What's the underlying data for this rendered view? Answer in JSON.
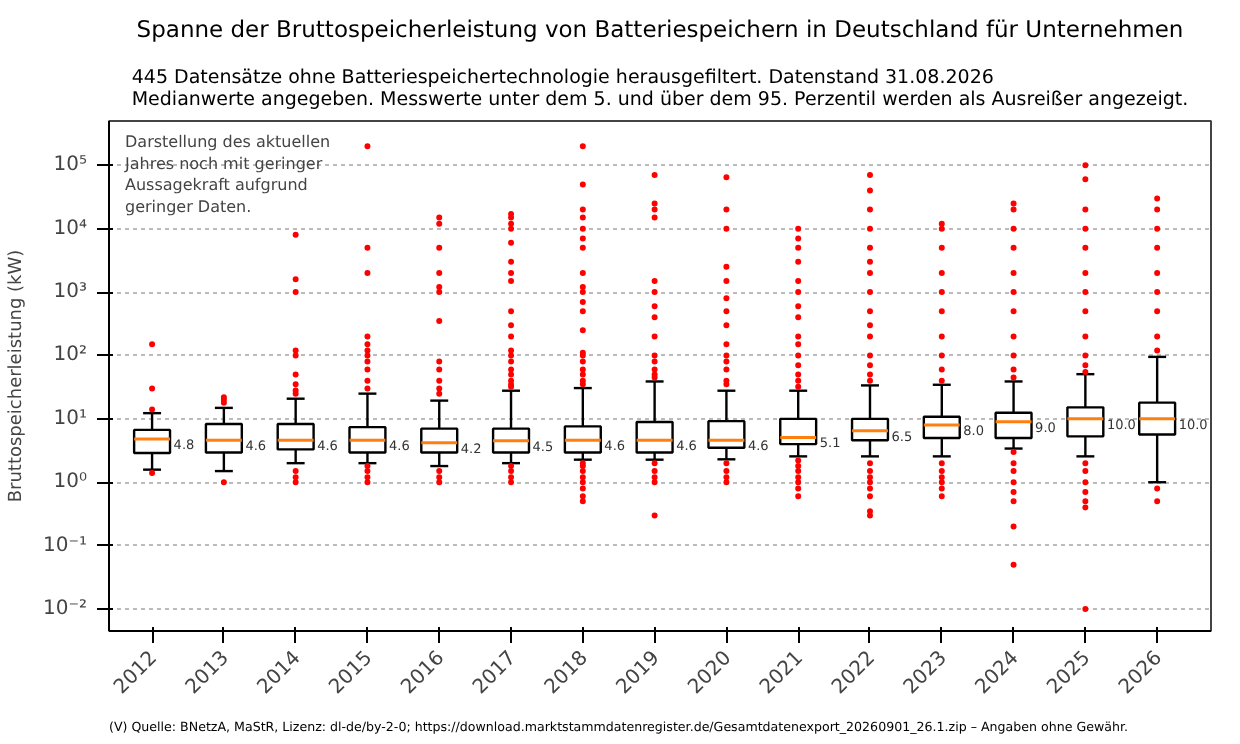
{
  "chart_data": {
    "type": "box",
    "title": "Spanne der Bruttospeicherleistung von Batteriespeichern in Deutschland für Unternehmen",
    "subtitle": "445 Datensätze ohne Batteriespeichertechnologie herausgefiltert. Datenstand 31.08.2026\nMedianwerte angegeben. Messwerte unter dem 5. und über dem 95. Perzentil werden als Ausreißer angezeigt.",
    "ylabel": "Bruttospeicherleistung (kW)",
    "categories": [
      "2012",
      "2013",
      "2014",
      "2015",
      "2016",
      "2017",
      "2018",
      "2019",
      "2020",
      "2021",
      "2022",
      "2023",
      "2024",
      "2025",
      "2026"
    ],
    "annotations": [
      "Darstellung des aktuellen\nJahres noch mit geringer\nAussagekraft aufgrund\ngeringer Daten.",
      "(V) Quelle: BNetzA, MaStR, Lizenz: dl-de/by-2-0; https://download.marktstammdatenregister.de/Gesamtdatenexport_20260901_26.1.zip – Angaben ohne Gewähr."
    ],
    "log": "y",
    "ylim": [
      0.0045,
      500000
    ],
    "yticks": [
      {
        "value": 0.01,
        "label": "10⁻²"
      },
      {
        "value": 0.1,
        "label": "10⁻¹"
      },
      {
        "value": 1,
        "label": "10⁰"
      },
      {
        "value": 10,
        "label": "10¹"
      },
      {
        "value": 100,
        "label": "10²"
      },
      {
        "value": 1000,
        "label": "10³"
      },
      {
        "value": 10000,
        "label": "10⁴"
      },
      {
        "value": 100000,
        "label": "10⁵"
      }
    ],
    "grid": "y",
    "value_labels": [
      "4.8",
      "4.6",
      "4.6",
      "4.6",
      "4.2",
      "4.5",
      "4.6",
      "4.6",
      "4.6",
      "5.1",
      "6.5",
      "8.0",
      "9.0",
      "10.0",
      "10.0"
    ],
    "series": [
      {
        "color": "#000000",
        "boxes": [
          {
            "low": 1.58,
            "q1": 2.9,
            "median": 4.8,
            "q3": 6.7,
            "high": 12.3,
            "outliers": [
              150,
              30,
              14,
              1.4
            ]
          },
          {
            "low": 1.5,
            "q1": 2.95,
            "median": 4.6,
            "q3": 8.3,
            "high": 14.9,
            "outliers": [
              22,
              20,
              18,
              1.0
            ]
          },
          {
            "low": 2.0,
            "q1": 3.3,
            "median": 4.6,
            "q3": 8.3,
            "high": 20.8,
            "outliers": [
              8000,
              1600,
              1000,
              120,
              100,
              50,
              35,
              28,
              25,
              1.5,
              1.2,
              1.0
            ]
          },
          {
            "low": 2.0,
            "q1": 2.95,
            "median": 4.6,
            "q3": 7.4,
            "high": 25,
            "outliers": [
              200000,
              5000,
              2000,
              200,
              150,
              120,
              100,
              80,
              60,
              40,
              30,
              1.8,
              1.5,
              1.2,
              1.0
            ]
          },
          {
            "low": 1.8,
            "q1": 2.95,
            "median": 4.2,
            "q3": 7.0,
            "high": 19.4,
            "outliers": [
              15000,
              12000,
              5000,
              2000,
              1200,
              1000,
              350,
              80,
              60,
              40,
              30,
              25,
              1.5,
              1.2,
              1.0
            ]
          },
          {
            "low": 2.0,
            "q1": 2.95,
            "median": 4.5,
            "q3": 7.0,
            "high": 27.8,
            "outliers": [
              17000,
              15000,
              12000,
              10000,
              6000,
              3000,
              2000,
              1500,
              500,
              300,
              200,
              120,
              100,
              80,
              60,
              50,
              40,
              35,
              32,
              1.8,
              1.5,
              1.2,
              1.0
            ]
          },
          {
            "low": 2.27,
            "q1": 2.95,
            "median": 4.6,
            "q3": 7.6,
            "high": 30.6,
            "outliers": [
              200000,
              50000,
              20000,
              15000,
              10000,
              7000,
              5000,
              2000,
              1200,
              1000,
              700,
              500,
              250,
              110,
              100,
              80,
              60,
              50,
              40,
              35,
              2.0,
              1.8,
              1.5,
              1.2,
              1.0,
              0.8,
              0.6,
              0.5
            ]
          },
          {
            "low": 2.27,
            "q1": 2.95,
            "median": 4.6,
            "q3": 8.9,
            "high": 38.9,
            "outliers": [
              70000,
              25000,
              20000,
              15000,
              1500,
              1000,
              600,
              400,
              200,
              100,
              80,
              60,
              50,
              45,
              2.0,
              1.5,
              1.2,
              1.0,
              0.3
            ]
          },
          {
            "low": 2.3,
            "q1": 3.5,
            "median": 4.6,
            "q3": 9.2,
            "high": 27.8,
            "outliers": [
              65000,
              20000,
              10000,
              2500,
              1500,
              800,
              500,
              300,
              150,
              100,
              80,
              60,
              40,
              35,
              2.0,
              1.5,
              1.2,
              1.0
            ]
          },
          {
            "low": 2.56,
            "q1": 4.0,
            "median": 5.1,
            "q3": 10,
            "high": 27.8,
            "outliers": [
              10000,
              7000,
              5000,
              3000,
              1500,
              1000,
              600,
              400,
              200,
              150,
              100,
              70,
              50,
              40,
              32,
              2.2,
              1.8,
              1.5,
              1.2,
              1.0,
              0.8,
              0.6
            ]
          },
          {
            "low": 2.56,
            "q1": 4.6,
            "median": 6.5,
            "q3": 10,
            "high": 33.7,
            "outliers": [
              70000,
              40000,
              20000,
              10000,
              5000,
              3000,
              2000,
              1000,
              500,
              300,
              200,
              100,
              70,
              50,
              40,
              2.0,
              1.5,
              1.2,
              1.0,
              0.8,
              0.6,
              0.35,
              0.3
            ]
          },
          {
            "low": 2.56,
            "q1": 5.0,
            "median": 8.0,
            "q3": 10.8,
            "high": 34.5,
            "outliers": [
              12000,
              10000,
              5000,
              2000,
              1000,
              500,
              200,
              100,
              60,
              40,
              2.0,
              1.5,
              1.2,
              1.0,
              0.8,
              0.6
            ]
          },
          {
            "low": 3.4,
            "q1": 5.0,
            "median": 9.0,
            "q3": 12.5,
            "high": 38.9,
            "outliers": [
              25000,
              20000,
              10000,
              5000,
              2000,
              1000,
              500,
              200,
              100,
              60,
              45,
              3.0,
              2.0,
              1.5,
              1.0,
              0.7,
              0.5,
              0.2,
              0.05
            ]
          },
          {
            "low": 2.56,
            "q1": 5.3,
            "median": 10.0,
            "q3": 15.2,
            "high": 50.7,
            "outliers": [
              100000,
              60000,
              20000,
              10000,
              5000,
              2000,
              1000,
              500,
              200,
              100,
              70,
              55,
              2.0,
              1.5,
              1.0,
              0.7,
              0.5,
              0.4,
              0.01
            ]
          },
          {
            "low": 1.0,
            "q1": 5.66,
            "median": 10.0,
            "q3": 18,
            "high": 95,
            "outliers": [
              30000,
              20000,
              10000,
              5000,
              2000,
              1000,
              500,
              200,
              120,
              0.8,
              0.5
            ]
          }
        ]
      }
    ]
  }
}
